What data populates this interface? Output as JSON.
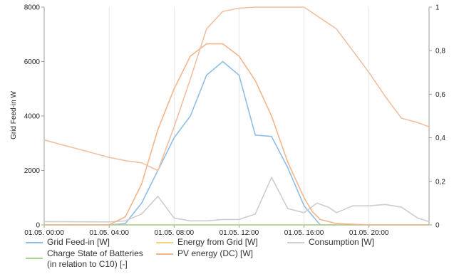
{
  "chart_data": {
    "type": "line",
    "title": "",
    "ylabel": "Grid Feed-in  W",
    "y2label": "",
    "ylim": [
      0,
      8000
    ],
    "y2lim": [
      0,
      1
    ],
    "xlim": [
      0,
      23.7
    ],
    "y_ticks": [
      "0",
      "2000",
      "4000",
      "6000",
      "8000"
    ],
    "y2_ticks": [
      "0",
      "0,2",
      "0,4",
      "0,6",
      "0,8",
      "1"
    ],
    "x_ticks": [
      {
        "x": 0,
        "label": "01.05. 00:00"
      },
      {
        "x": 4,
        "label": "01.05. 04:00"
      },
      {
        "x": 8,
        "label": "01.05. 08:00"
      },
      {
        "x": 12,
        "label": "01.05. 12:00"
      },
      {
        "x": 16,
        "label": "01.05. 16:00"
      },
      {
        "x": 20,
        "label": "01.05. 20:00"
      }
    ],
    "grid": {
      "x": true,
      "y": false
    },
    "legend_position": "bottom",
    "series": [
      {
        "name": "Grid Feed-in  [W]",
        "axis": "left",
        "color": "#8fbde6",
        "x": [
          0,
          4,
          5,
          6,
          7,
          8,
          9,
          10,
          11,
          12,
          13,
          14,
          15,
          16,
          17,
          18,
          20,
          22,
          23.7
        ],
        "y": [
          0,
          0,
          50,
          800,
          2000,
          3200,
          4000,
          5500,
          6000,
          5500,
          3300,
          3250,
          2100,
          700,
          0,
          0,
          0,
          0,
          0
        ]
      },
      {
        "name": "Energy from Grid  [W]",
        "axis": "left",
        "color": "#f2d27a",
        "x": [
          0,
          2,
          4,
          5,
          6,
          7,
          8,
          9,
          10,
          11,
          12,
          13,
          14,
          15,
          16,
          16.5,
          17,
          18,
          20,
          22,
          23.7
        ],
        "y": [
          0,
          0,
          0,
          0,
          0,
          0,
          0,
          0,
          0,
          0,
          0,
          0,
          0,
          0,
          0,
          0,
          0,
          0,
          0,
          0,
          0
        ]
      },
      {
        "name": "Consumption  [W]",
        "axis": "left",
        "color": "#cdcdcd",
        "x": [
          0,
          4,
          5,
          6,
          7,
          8,
          9,
          10,
          11,
          12,
          13,
          14,
          15,
          16,
          16.8,
          17.5,
          18,
          19,
          20,
          21,
          22,
          23,
          23.7
        ],
        "y": [
          120,
          110,
          150,
          400,
          1050,
          250,
          150,
          150,
          200,
          200,
          400,
          1750,
          600,
          450,
          800,
          650,
          450,
          700,
          700,
          750,
          650,
          250,
          120
        ]
      },
      {
        "name": "Charge State of Batteries\n(in relation to C10)  [-]",
        "axis": "right",
        "color": "#a5d28f",
        "x": [
          0,
          23.7
        ],
        "y": [
          0,
          0
        ]
      },
      {
        "name": "PV energy (DC)  [W]",
        "axis": "left",
        "color": "#f3b58b",
        "x": [
          0,
          4,
          5,
          6,
          7,
          8,
          9,
          10,
          11,
          12,
          13,
          14,
          15,
          16,
          16.5,
          17,
          18,
          20,
          22,
          23.7
        ],
        "y": [
          0,
          0,
          300,
          1500,
          3500,
          5000,
          6200,
          6650,
          6650,
          6200,
          5300,
          4000,
          2300,
          1000,
          500,
          200,
          50,
          0,
          0,
          0
        ]
      },
      {
        "name": "",
        "axis": "right",
        "color": "#efc0a2",
        "x": [
          0,
          1,
          2,
          3,
          4,
          5,
          6,
          7,
          8,
          9,
          10,
          11,
          12,
          13,
          14,
          15,
          16,
          17,
          18,
          19,
          20,
          21,
          22,
          23,
          23.7
        ],
        "y": [
          0.39,
          0.37,
          0.35,
          0.33,
          0.31,
          0.295,
          0.285,
          0.25,
          0.45,
          0.67,
          0.9,
          0.98,
          0.995,
          1.0,
          1.0,
          1.0,
          1.0,
          0.95,
          0.9,
          0.8,
          0.7,
          0.59,
          0.49,
          0.47,
          0.45
        ]
      }
    ]
  }
}
